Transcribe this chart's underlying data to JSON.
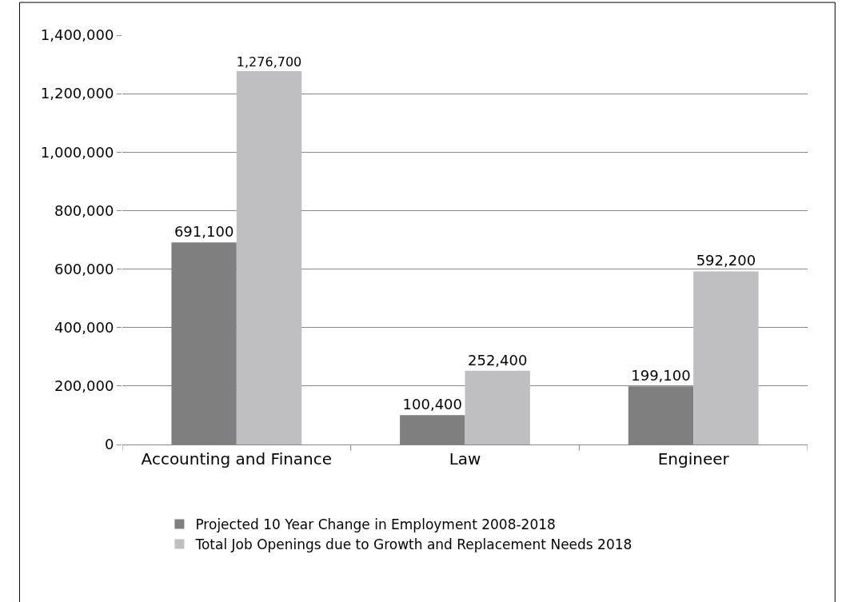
{
  "chart_data": {
    "type": "bar",
    "categories": [
      "Accounting and Finance",
      "Law",
      "Engineer"
    ],
    "series": [
      {
        "name": "Projected 10 Year Change in Employment 2008-2018",
        "color": "#7f7f80",
        "values": [
          691100,
          100400,
          199100
        ],
        "value_labels": [
          "691,100",
          "100,400",
          "199,100"
        ]
      },
      {
        "name": "Total Job Openings due to Growth and Replacement Needs 2018",
        "color": "#bfbfc1",
        "values": [
          1276700,
          252400,
          592200
        ],
        "value_labels": [
          "1,276,700",
          "252,400",
          "592,200"
        ]
      }
    ],
    "ylim": [
      0,
      1400000
    ],
    "yticks": [
      {
        "value": 0,
        "label": "0"
      },
      {
        "value": 200000,
        "label": "200,000"
      },
      {
        "value": 400000,
        "label": "400,000"
      },
      {
        "value": 600000,
        "label": "600,000"
      },
      {
        "value": 800000,
        "label": "800,000"
      },
      {
        "value": 1000000,
        "label": "1,000,000"
      },
      {
        "value": 1200000,
        "label": "1,200,000"
      },
      {
        "value": 1400000,
        "label": "1,400,000"
      }
    ],
    "grid": "y",
    "legend": "bottom"
  }
}
